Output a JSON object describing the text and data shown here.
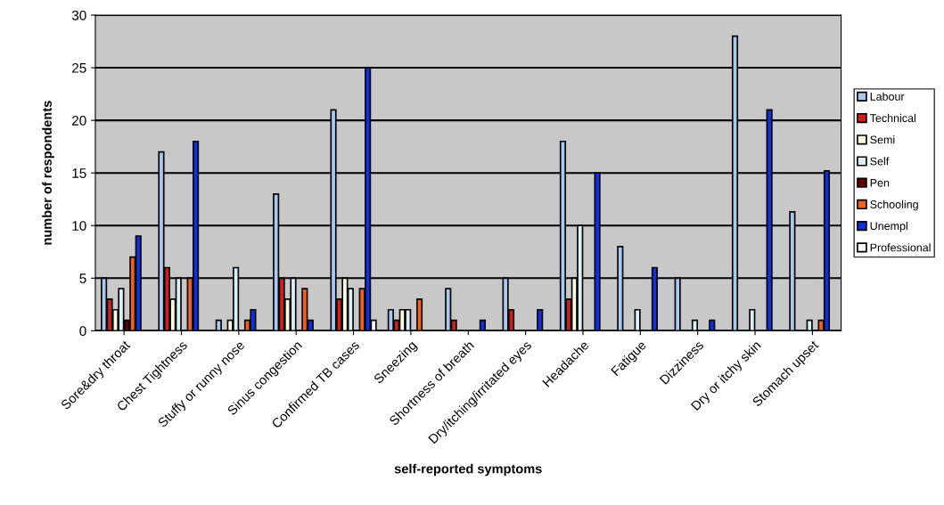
{
  "chart_data": {
    "type": "bar",
    "xlabel": "self-reported symptoms",
    "ylabel": "number of respondents",
    "categories": [
      "Sore&dry throat",
      "Chest Tightness",
      "Stuffy or runny nose",
      "Sinus congestion",
      "Confirmed TB cases",
      "Sneezing",
      "Shortness of breath",
      "Dry/itching/irritated eyes",
      "Headache",
      "Fatigue",
      "Dizziness",
      "Dry or itchy skin",
      "Stomach upset"
    ],
    "series": [
      {
        "name": "Labour",
        "color": "#a9c8f0",
        "values": [
          5,
          17,
          1,
          13,
          21,
          2,
          4,
          5,
          18,
          8,
          5,
          28,
          11.3
        ]
      },
      {
        "name": "Technical",
        "color": "#cc2020",
        "values": [
          3,
          6,
          null,
          5,
          3,
          1,
          1,
          2,
          3,
          null,
          null,
          null,
          null
        ]
      },
      {
        "name": "Semi",
        "color": "#fffbe0",
        "values": [
          2,
          3,
          1,
          3,
          5,
          2,
          null,
          null,
          5,
          null,
          null,
          null,
          null
        ]
      },
      {
        "name": "Self",
        "color": "#d8f0f8",
        "values": [
          4,
          5,
          6,
          5,
          4,
          2,
          null,
          null,
          10,
          2,
          1,
          2,
          1
        ]
      },
      {
        "name": "Pen",
        "color": "#600000",
        "values": [
          1,
          null,
          null,
          null,
          null,
          null,
          null,
          null,
          null,
          null,
          null,
          null,
          null
        ]
      },
      {
        "name": "Schooling",
        "color": "#f06020",
        "values": [
          7,
          5,
          1,
          4,
          4,
          3,
          null,
          null,
          null,
          null,
          null,
          null,
          1
        ]
      },
      {
        "name": "Unempl",
        "color": "#1030e0",
        "values": [
          9,
          18,
          2,
          1,
          25,
          null,
          1,
          2,
          15,
          6,
          1,
          21,
          15.2
        ]
      },
      {
        "name": "Professional",
        "color": "#ffffff",
        "values": [
          null,
          null,
          null,
          null,
          1,
          null,
          null,
          null,
          null,
          null,
          null,
          null,
          null
        ]
      }
    ],
    "ylim": [
      0,
      30
    ],
    "yticks": [
      0,
      5,
      10,
      15,
      20,
      25,
      30
    ],
    "grid": "y",
    "legend": "right"
  }
}
